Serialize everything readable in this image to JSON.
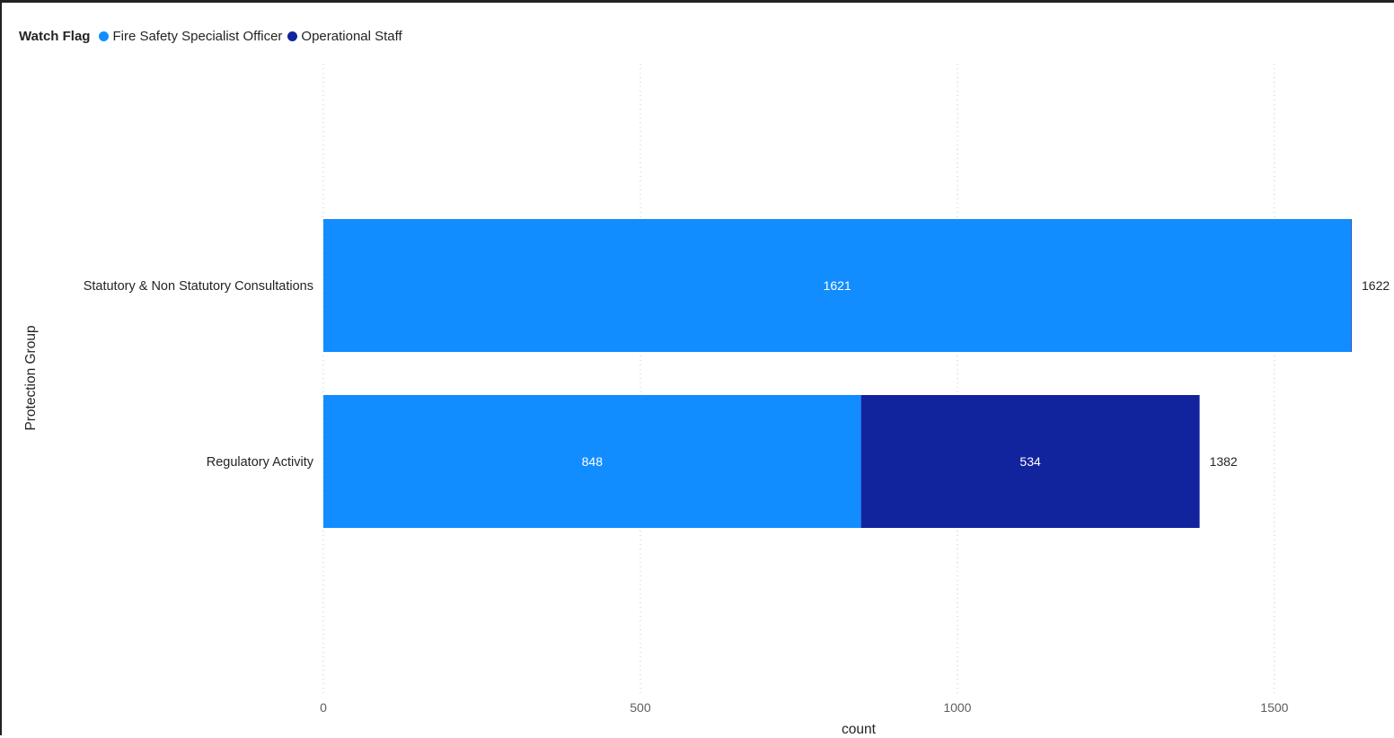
{
  "legend": {
    "title": "Watch Flag",
    "items": [
      {
        "label": "Fire Safety Specialist Officer",
        "color": "#118DFF"
      },
      {
        "label": "Operational Staff",
        "color": "#12239E"
      }
    ]
  },
  "chart_data": {
    "type": "bar",
    "orientation": "horizontal",
    "stacked": true,
    "categories": [
      "Statutory & Non Statutory Consultations",
      "Regulatory Activity"
    ],
    "series": [
      {
        "name": "Fire Safety Specialist Officer",
        "color": "#118DFF",
        "values": [
          1621,
          848
        ],
        "labels": [
          "1621",
          "848"
        ]
      },
      {
        "name": "Operational Staff",
        "color": "#12239E",
        "values": [
          1,
          534
        ],
        "labels": [
          "",
          "534"
        ]
      }
    ],
    "totals": [
      1622,
      1382
    ],
    "xlabel": "count",
    "ylabel": "Protection Group",
    "xlim": [
      0,
      1622
    ],
    "xticks": [
      0,
      500,
      1000,
      1500
    ],
    "grid": "vertical dotted",
    "legend_position": "top-left"
  }
}
